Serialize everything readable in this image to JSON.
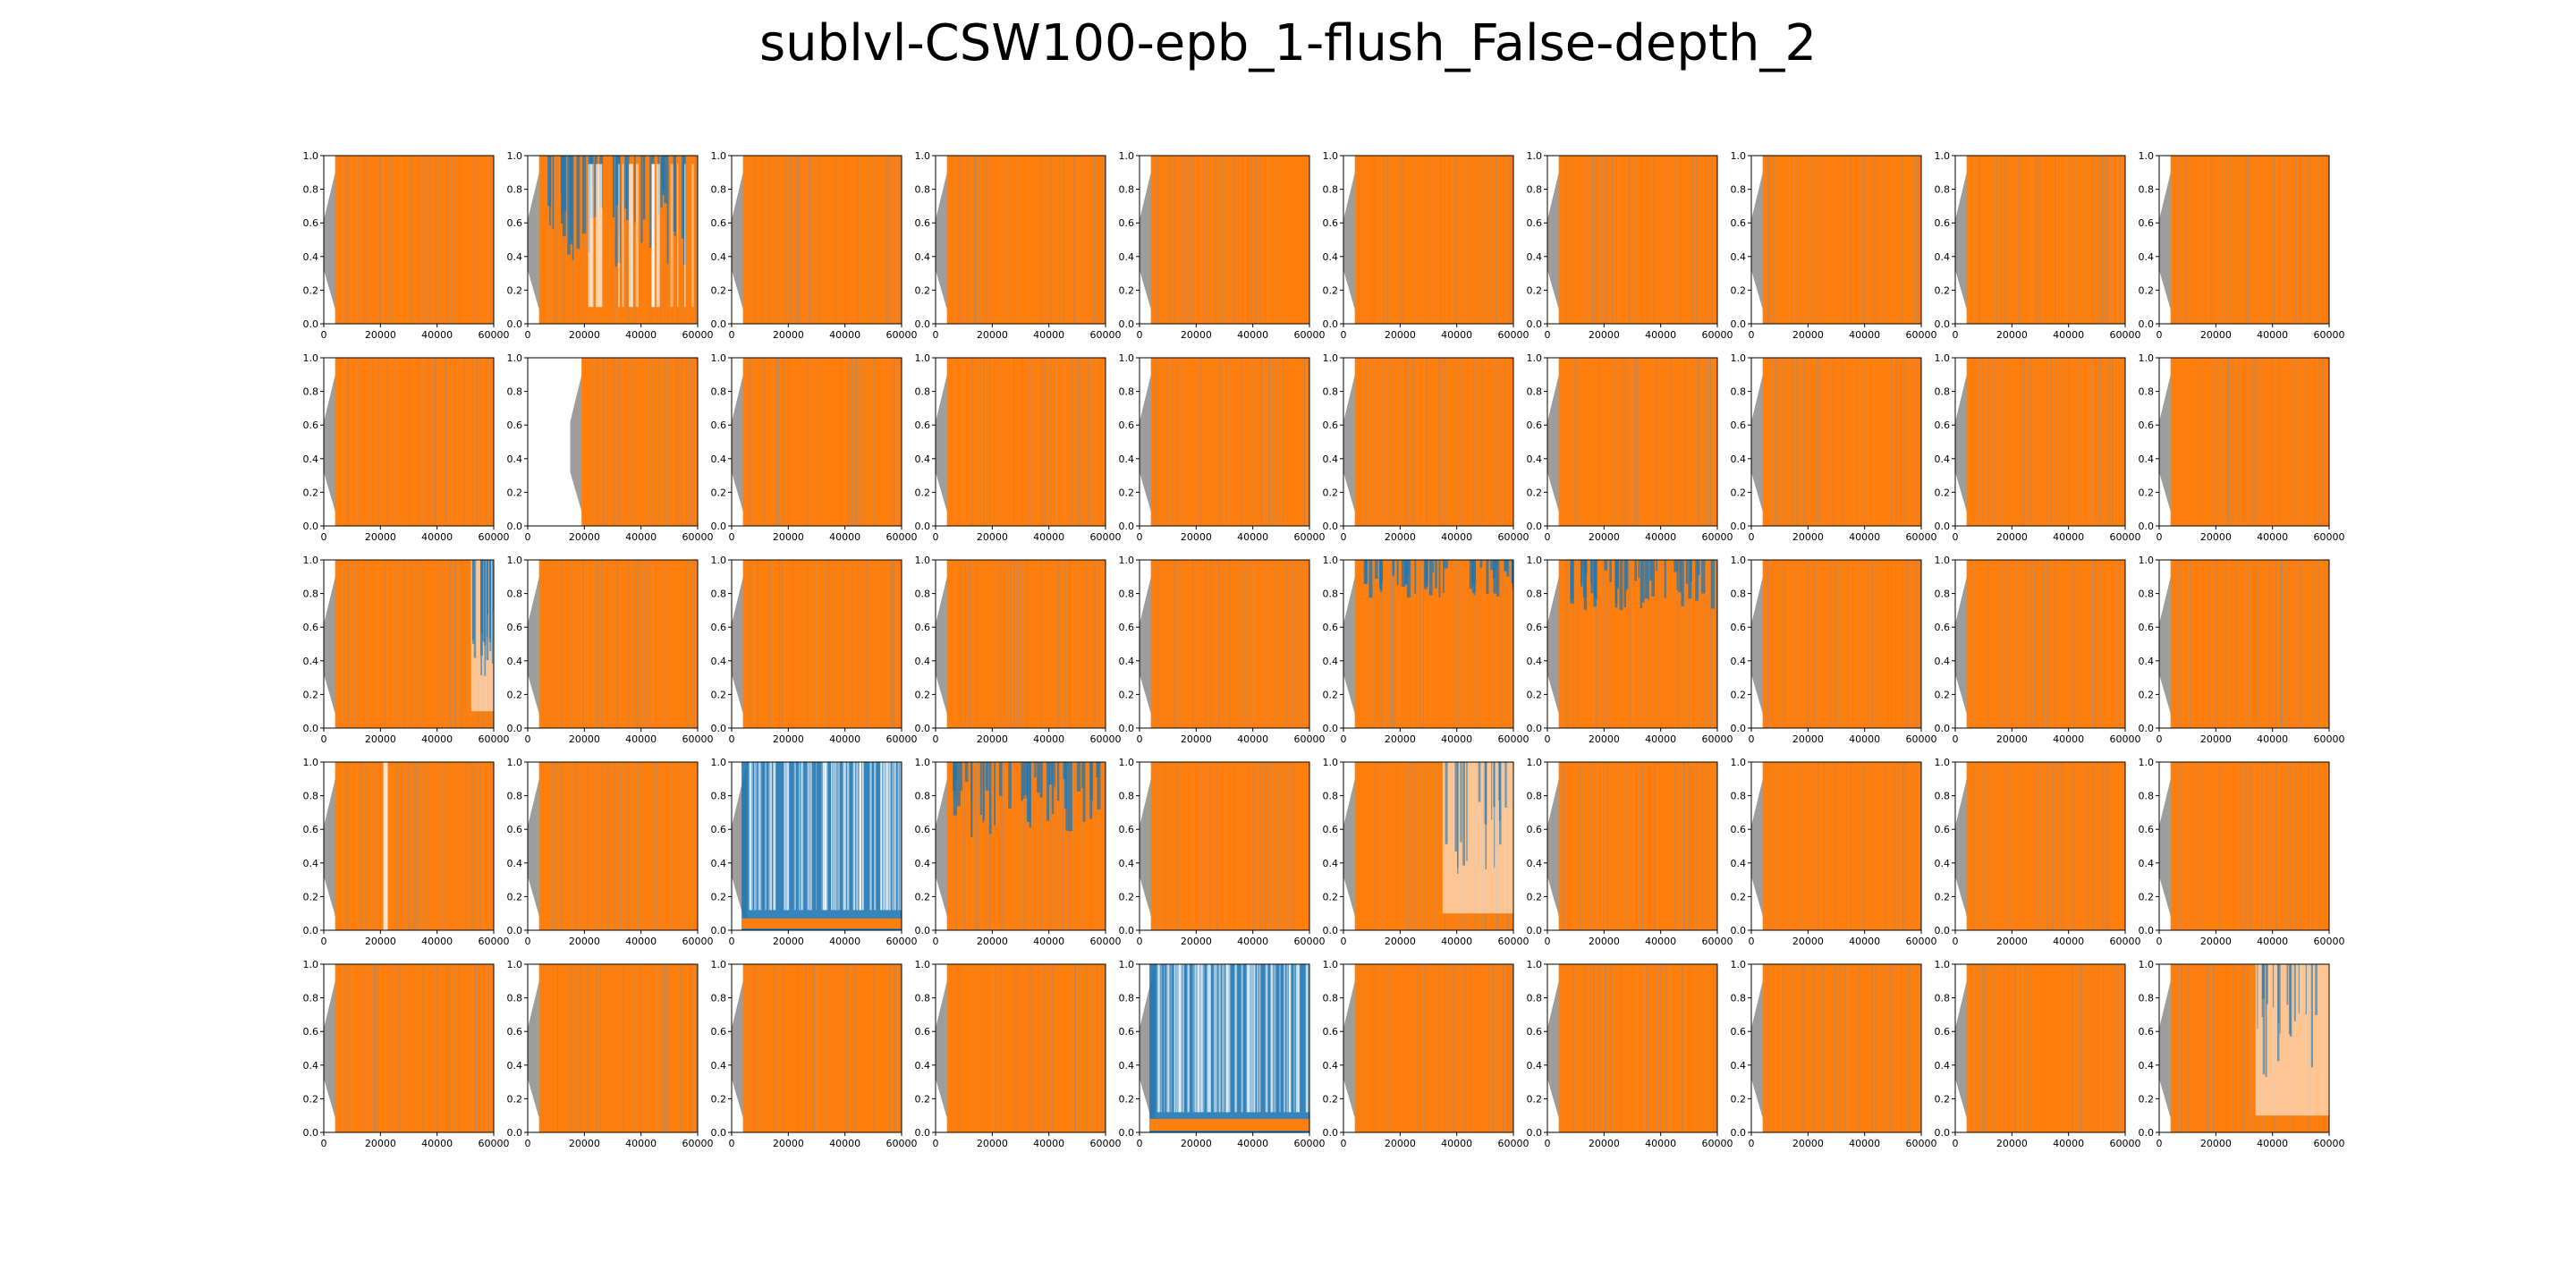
{
  "figure": {
    "title": "sublvl-CSW100-epb_1-flush_False-depth_2"
  },
  "colors": {
    "series_blue": "#1f77b4",
    "series_orange": "#ff7f0e",
    "band_gray": "#8c8c8c",
    "axes": "#000000"
  },
  "chart_data": {
    "type": "area",
    "layout": {
      "rows": 5,
      "cols": 10
    },
    "xlim": [
      0,
      60000
    ],
    "ylim": [
      0.0,
      1.0
    ],
    "xticks": [
      0,
      20000,
      40000,
      60000
    ],
    "xtick_labels": [
      "0",
      "20000",
      "40000",
      "60000"
    ],
    "yticks": [
      0.0,
      0.2,
      0.4,
      0.6,
      0.8,
      1.0
    ],
    "ytick_labels": [
      "0.0",
      "0.2",
      "0.4",
      "0.6",
      "0.8",
      "1.0"
    ],
    "grid": false,
    "series": [
      {
        "color": "#1f77b4"
      },
      {
        "color": "#ff7f0e"
      }
    ],
    "subplots": [
      {
        "row": 1,
        "col": 1,
        "pattern": "full"
      },
      {
        "row": 1,
        "col": 2,
        "pattern": "blue_dominant_mid",
        "blue_fraction": 0.45
      },
      {
        "row": 1,
        "col": 3,
        "pattern": "full"
      },
      {
        "row": 1,
        "col": 4,
        "pattern": "full"
      },
      {
        "row": 1,
        "col": 5,
        "pattern": "full"
      },
      {
        "row": 1,
        "col": 6,
        "pattern": "full"
      },
      {
        "row": 1,
        "col": 7,
        "pattern": "full"
      },
      {
        "row": 1,
        "col": 8,
        "pattern": "full"
      },
      {
        "row": 1,
        "col": 9,
        "pattern": "full"
      },
      {
        "row": 1,
        "col": 10,
        "pattern": "full"
      },
      {
        "row": 2,
        "col": 1,
        "pattern": "full"
      },
      {
        "row": 2,
        "col": 2,
        "pattern": "late_start",
        "start_x": 15000
      },
      {
        "row": 2,
        "col": 3,
        "pattern": "full"
      },
      {
        "row": 2,
        "col": 4,
        "pattern": "full"
      },
      {
        "row": 2,
        "col": 5,
        "pattern": "full"
      },
      {
        "row": 2,
        "col": 6,
        "pattern": "full"
      },
      {
        "row": 2,
        "col": 7,
        "pattern": "full"
      },
      {
        "row": 2,
        "col": 8,
        "pattern": "full"
      },
      {
        "row": 2,
        "col": 9,
        "pattern": "full"
      },
      {
        "row": 2,
        "col": 10,
        "pattern": "full"
      },
      {
        "row": 3,
        "col": 1,
        "pattern": "blue_end",
        "blue_start_x": 52000
      },
      {
        "row": 3,
        "col": 2,
        "pattern": "full"
      },
      {
        "row": 3,
        "col": 3,
        "pattern": "full"
      },
      {
        "row": 3,
        "col": 4,
        "pattern": "full"
      },
      {
        "row": 3,
        "col": 5,
        "pattern": "full"
      },
      {
        "row": 3,
        "col": 6,
        "pattern": "blue_top",
        "blue_fraction": 0.15
      },
      {
        "row": 3,
        "col": 7,
        "pattern": "blue_top",
        "blue_fraction": 0.2
      },
      {
        "row": 3,
        "col": 8,
        "pattern": "full"
      },
      {
        "row": 3,
        "col": 9,
        "pattern": "full"
      },
      {
        "row": 3,
        "col": 10,
        "pattern": "full"
      },
      {
        "row": 4,
        "col": 1,
        "pattern": "gap",
        "gap_x": 21000
      },
      {
        "row": 4,
        "col": 2,
        "pattern": "full"
      },
      {
        "row": 4,
        "col": 3,
        "pattern": "blue_full",
        "orange_level": 0.05
      },
      {
        "row": 4,
        "col": 4,
        "pattern": "blue_top",
        "blue_fraction": 0.3
      },
      {
        "row": 4,
        "col": 5,
        "pattern": "full"
      },
      {
        "row": 4,
        "col": 6,
        "pattern": "blue_end",
        "blue_start_x": 35000
      },
      {
        "row": 4,
        "col": 7,
        "pattern": "full"
      },
      {
        "row": 4,
        "col": 8,
        "pattern": "full"
      },
      {
        "row": 4,
        "col": 9,
        "pattern": "full"
      },
      {
        "row": 4,
        "col": 10,
        "pattern": "full"
      },
      {
        "row": 5,
        "col": 1,
        "pattern": "full"
      },
      {
        "row": 5,
        "col": 2,
        "pattern": "full"
      },
      {
        "row": 5,
        "col": 3,
        "pattern": "full"
      },
      {
        "row": 5,
        "col": 4,
        "pattern": "full"
      },
      {
        "row": 5,
        "col": 5,
        "pattern": "blue_full",
        "orange_level": 0.06
      },
      {
        "row": 5,
        "col": 6,
        "pattern": "full"
      },
      {
        "row": 5,
        "col": 7,
        "pattern": "full"
      },
      {
        "row": 5,
        "col": 8,
        "pattern": "full"
      },
      {
        "row": 5,
        "col": 9,
        "pattern": "full"
      },
      {
        "row": 5,
        "col": 10,
        "pattern": "blue_end",
        "blue_start_x": 34000
      }
    ]
  }
}
